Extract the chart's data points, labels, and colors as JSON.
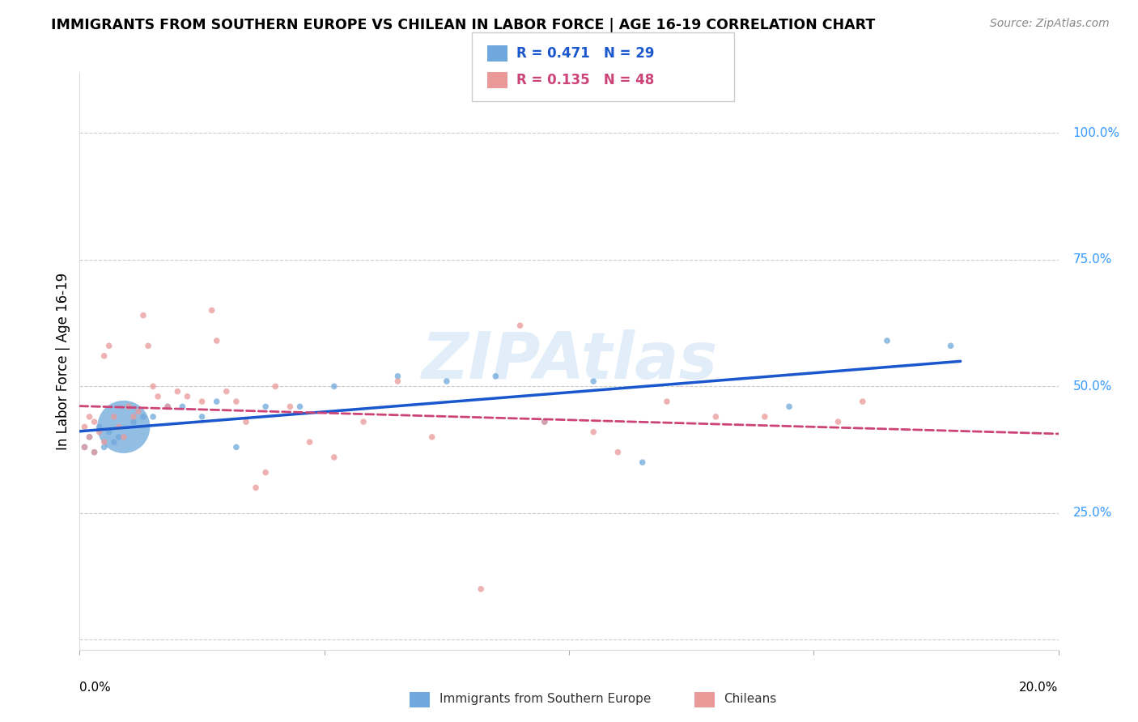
{
  "title": "IMMIGRANTS FROM SOUTHERN EUROPE VS CHILEAN IN LABOR FORCE | AGE 16-19 CORRELATION CHART",
  "source": "Source: ZipAtlas.com",
  "ylabel": "In Labor Force | Age 16-19",
  "xlim": [
    0.0,
    0.2
  ],
  "ylim": [
    -0.02,
    1.12
  ],
  "blue_R": 0.471,
  "blue_N": 29,
  "pink_R": 0.135,
  "pink_N": 48,
  "blue_color": "#6fa8dc",
  "pink_color": "#ea9999",
  "blue_line_color": "#1a56cc",
  "pink_line_color": "#cc4477",
  "right_label_color": "#3399ff",
  "legend_label_blue": "Immigrants from Southern Europe",
  "legend_label_pink": "Chileans",
  "blue_x": [
    0.001,
    0.002,
    0.003,
    0.004,
    0.005,
    0.006,
    0.007,
    0.008,
    0.009,
    0.011,
    0.013,
    0.015,
    0.018,
    0.021,
    0.025,
    0.028,
    0.032,
    0.038,
    0.045,
    0.052,
    0.065,
    0.075,
    0.085,
    0.095,
    0.105,
    0.115,
    0.145,
    0.165,
    0.178
  ],
  "blue_y": [
    0.38,
    0.4,
    0.37,
    0.42,
    0.38,
    0.41,
    0.39,
    0.4,
    0.42,
    0.43,
    0.44,
    0.44,
    0.46,
    0.46,
    0.44,
    0.47,
    0.38,
    0.46,
    0.46,
    0.5,
    0.52,
    0.51,
    0.52,
    0.43,
    0.51,
    0.35,
    0.46,
    0.59,
    0.58
  ],
  "blue_sizes": [
    30,
    30,
    30,
    30,
    30,
    30,
    30,
    30,
    2200,
    30,
    30,
    30,
    30,
    30,
    30,
    30,
    30,
    30,
    30,
    30,
    30,
    30,
    30,
    30,
    30,
    30,
    30,
    30,
    30
  ],
  "pink_x": [
    0.001,
    0.001,
    0.002,
    0.002,
    0.003,
    0.003,
    0.004,
    0.005,
    0.005,
    0.006,
    0.007,
    0.008,
    0.009,
    0.01,
    0.011,
    0.012,
    0.013,
    0.014,
    0.015,
    0.016,
    0.018,
    0.02,
    0.022,
    0.025,
    0.027,
    0.028,
    0.03,
    0.032,
    0.034,
    0.036,
    0.038,
    0.04,
    0.043,
    0.047,
    0.052,
    0.058,
    0.065,
    0.072,
    0.082,
    0.09,
    0.095,
    0.105,
    0.11,
    0.12,
    0.13,
    0.14,
    0.155,
    0.16
  ],
  "pink_y": [
    0.42,
    0.38,
    0.44,
    0.4,
    0.43,
    0.37,
    0.41,
    0.39,
    0.56,
    0.58,
    0.44,
    0.42,
    0.4,
    0.46,
    0.44,
    0.45,
    0.64,
    0.58,
    0.5,
    0.48,
    0.46,
    0.49,
    0.48,
    0.47,
    0.65,
    0.59,
    0.49,
    0.47,
    0.43,
    0.3,
    0.33,
    0.5,
    0.46,
    0.39,
    0.36,
    0.43,
    0.51,
    0.4,
    0.1,
    0.62,
    0.43,
    0.41,
    0.37,
    0.47,
    0.44,
    0.44,
    0.43,
    0.47
  ],
  "pink_sizes": [
    30,
    30,
    30,
    30,
    30,
    30,
    30,
    30,
    30,
    30,
    30,
    30,
    30,
    30,
    30,
    30,
    30,
    30,
    30,
    30,
    30,
    30,
    30,
    30,
    30,
    30,
    30,
    30,
    30,
    30,
    30,
    30,
    30,
    30,
    30,
    30,
    30,
    30,
    30,
    30,
    30,
    30,
    30,
    30,
    30,
    30,
    30,
    30
  ],
  "watermark": "ZIPAtlas",
  "background_color": "#ffffff",
  "grid_color": "#cccccc",
  "ytick_positions": [
    0.0,
    0.25,
    0.5,
    0.75,
    1.0
  ],
  "ytick_labels": [
    "",
    "25.0%",
    "50.0%",
    "75.0%",
    "100.0%"
  ]
}
